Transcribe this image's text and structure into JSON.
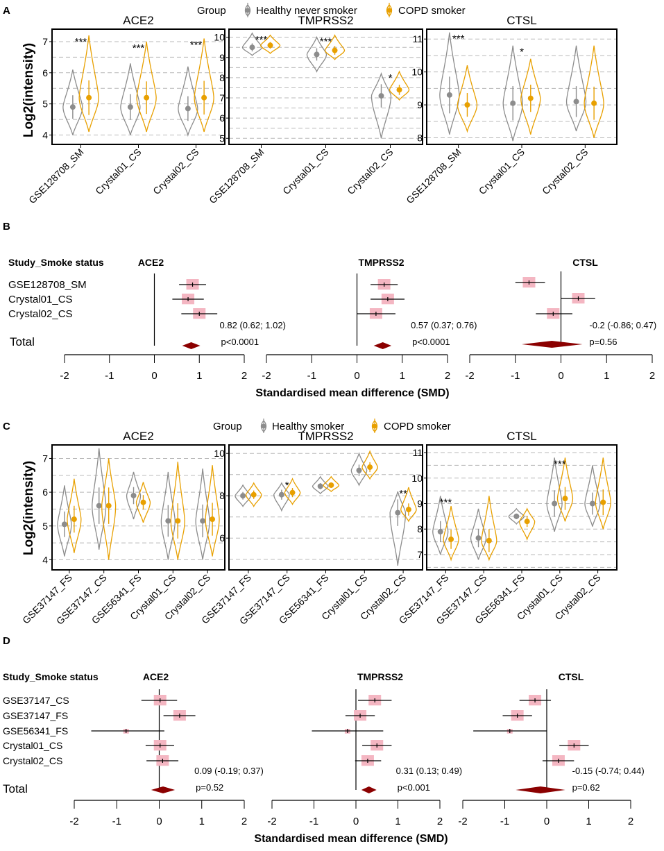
{
  "colors": {
    "healthy": "#8c8c8c",
    "copd": "#e8a000",
    "forest_box": "#f4b6c2",
    "diamond": "#8b0000"
  },
  "panel_labels": [
    "A",
    "B",
    "C",
    "D"
  ],
  "legends": {
    "A": {
      "title": "Group",
      "items": [
        "Healthy never smoker",
        "COPD smoker"
      ]
    },
    "C": {
      "title": "Group",
      "items": [
        "Healthy smoker",
        "COPD smoker"
      ]
    }
  },
  "ylabel": "Log2(intensity)",
  "forest_header": "Study_Smoke status",
  "forest_total_label": "Total",
  "forest_xlabel": "Standardised mean difference (SMD)",
  "chart_data": [
    {
      "type": "violin",
      "panel": "A",
      "title": "ACE2",
      "ylabel": "Log2(intensity)",
      "ylim": [
        3.7,
        7.4
      ],
      "yticks": [
        4,
        5,
        6,
        7
      ],
      "grid": [
        4,
        4.5,
        5,
        5.5,
        6,
        6.5,
        7
      ],
      "categories": [
        "GSE128708_SM",
        "Crystal01_CS",
        "Crystal02_CS"
      ],
      "series": [
        {
          "name": "Healthy never smoker",
          "values": [
            4.9,
            4.9,
            4.85
          ],
          "ranges": [
            [
              4.0,
              6.1
            ],
            [
              4.0,
              6.3
            ],
            [
              4.0,
              6.2
            ]
          ]
        },
        {
          "name": "COPD smoker",
          "values": [
            5.2,
            5.2,
            5.2
          ],
          "ranges": [
            [
              4.1,
              7.2
            ],
            [
              4.1,
              7.0
            ],
            [
              4.1,
              7.1
            ]
          ]
        }
      ],
      "significance": [
        "***",
        "***",
        "***"
      ]
    },
    {
      "type": "violin",
      "panel": "A",
      "title": "TMPRSS2",
      "ylim": [
        4.7,
        10.4
      ],
      "yticks": [
        5,
        6,
        7,
        8,
        9,
        10
      ],
      "grid": [
        5,
        5.5,
        6,
        6.5,
        7,
        7.5,
        8,
        8.5,
        9,
        9.5,
        10
      ],
      "categories": [
        "GSE128708_SM",
        "Crystal01_CS",
        "Crystal02_CS"
      ],
      "series": [
        {
          "name": "Healthy never smoker",
          "values": [
            9.5,
            9.15,
            7.1
          ],
          "ranges": [
            [
              9.1,
              10.2
            ],
            [
              8.3,
              10.0
            ],
            [
              5.0,
              8.2
            ]
          ]
        },
        {
          "name": "COPD smoker",
          "values": [
            9.6,
            9.35,
            7.4
          ],
          "ranges": [
            [
              9.2,
              10.1
            ],
            [
              8.9,
              10.1
            ],
            [
              6.9,
              8.3
            ]
          ]
        }
      ],
      "significance": [
        "***",
        "***",
        "*"
      ]
    },
    {
      "type": "violin",
      "panel": "A",
      "title": "CTSL",
      "ylim": [
        7.8,
        11.3
      ],
      "yticks": [
        8,
        9,
        10,
        11
      ],
      "grid": [
        8,
        8.5,
        9,
        9.5,
        10,
        10.5,
        11
      ],
      "categories": [
        "GSE128708_SM",
        "Crystal01_CS",
        "Crystal02_CS"
      ],
      "series": [
        {
          "name": "Healthy never smoker",
          "values": [
            9.3,
            9.05,
            9.1
          ],
          "ranges": [
            [
              8.1,
              11.2
            ],
            [
              7.9,
              10.8
            ],
            [
              8.2,
              10.8
            ]
          ]
        },
        {
          "name": "COPD smoker",
          "values": [
            9.0,
            9.2,
            9.05
          ],
          "ranges": [
            [
              8.2,
              10.2
            ],
            [
              8.1,
              10.4
            ],
            [
              8.0,
              10.8
            ]
          ]
        }
      ],
      "significance": [
        "***",
        "*",
        ""
      ]
    },
    {
      "type": "forest",
      "panel": "B",
      "title": "ACE2",
      "xlim": [
        -2,
        2
      ],
      "xticks": [
        -2,
        -1,
        0,
        1,
        2
      ],
      "studies": [
        "GSE128708_SM",
        "Crystal01_CS",
        "Crystal02_CS"
      ],
      "estimates": [
        0.85,
        0.75,
        1.0
      ],
      "ci": [
        [
          0.55,
          1.15
        ],
        [
          0.4,
          1.1
        ],
        [
          0.6,
          1.4
        ]
      ],
      "total": {
        "estimate": 0.82,
        "ci": [
          0.62,
          1.02
        ]
      },
      "summary_text": "0.82 (0.62; 1.02)",
      "p_text": "p<0.0001"
    },
    {
      "type": "forest",
      "panel": "B",
      "title": "TMPRSS2",
      "xlim": [
        -2,
        2
      ],
      "xticks": [
        -2,
        -1,
        0,
        1,
        2
      ],
      "studies": [
        "GSE128708_SM",
        "Crystal01_CS",
        "Crystal02_CS"
      ],
      "estimates": [
        0.6,
        0.68,
        0.42
      ],
      "ci": [
        [
          0.3,
          0.9
        ],
        [
          0.3,
          1.05
        ],
        [
          0.0,
          0.85
        ]
      ],
      "total": {
        "estimate": 0.57,
        "ci": [
          0.37,
          0.76
        ]
      },
      "summary_text": "0.57 (0.37; 0.76)",
      "p_text": "p<0.0001"
    },
    {
      "type": "forest",
      "panel": "B",
      "title": "CTSL",
      "xlim": [
        -2,
        2
      ],
      "xticks": [
        -2,
        -1,
        0,
        1,
        2
      ],
      "studies": [
        "GSE128708_SM",
        "Crystal01_CS",
        "Crystal02_CS"
      ],
      "estimates": [
        -0.7,
        0.38,
        -0.17
      ],
      "ci": [
        [
          -1.0,
          -0.35
        ],
        [
          0.0,
          0.75
        ],
        [
          -0.55,
          0.25
        ]
      ],
      "total": {
        "estimate": -0.2,
        "ci": [
          -0.86,
          0.47
        ]
      },
      "summary_text": "-0.2 (-0.86; 0.47)",
      "p_text": "p=0.56"
    },
    {
      "type": "violin",
      "panel": "C",
      "title": "ACE2",
      "ylabel": "Log2(intensity)",
      "ylim": [
        3.7,
        7.4
      ],
      "yticks": [
        4,
        5,
        6,
        7
      ],
      "grid": [
        4,
        4.5,
        5,
        5.5,
        6,
        6.5,
        7
      ],
      "categories": [
        "GSE37147_FS",
        "GSE37147_CS",
        "GSE56341_FS",
        "Crystal01_CS",
        "Crystal02_CS"
      ],
      "series": [
        {
          "name": "Healthy smoker",
          "values": [
            5.05,
            5.6,
            5.9,
            5.15,
            5.15
          ],
          "ranges": [
            [
              4.1,
              6.2
            ],
            [
              4.3,
              7.3
            ],
            [
              5.2,
              6.6
            ],
            [
              4.0,
              6.6
            ],
            [
              4.0,
              6.7
            ]
          ]
        },
        {
          "name": "COPD smoker",
          "values": [
            5.2,
            5.6,
            5.7,
            5.15,
            5.2
          ],
          "ranges": [
            [
              4.2,
              6.4
            ],
            [
              4.0,
              7.0
            ],
            [
              5.1,
              6.3
            ],
            [
              4.0,
              6.9
            ],
            [
              4.1,
              6.8
            ]
          ]
        }
      ],
      "significance": [
        "",
        "",
        "",
        "",
        ""
      ]
    },
    {
      "type": "violin",
      "panel": "C",
      "title": "TMPRSS2",
      "ylim": [
        4.5,
        10.4
      ],
      "yticks": [
        6,
        8,
        10
      ],
      "grid": [
        5,
        6,
        7,
        8,
        9,
        10
      ],
      "categories": [
        "GSE37147_FS",
        "GSE37147_CS",
        "GSE56341_FS",
        "Crystal01_CS",
        "Crystal02_CS"
      ],
      "series": [
        {
          "name": "Healthy smoker",
          "values": [
            8.0,
            8.05,
            8.45,
            9.2,
            7.2
          ],
          "ranges": [
            [
              7.5,
              8.5
            ],
            [
              7.3,
              8.6
            ],
            [
              8.1,
              8.9
            ],
            [
              8.5,
              10.0
            ],
            [
              4.7,
              8.2
            ]
          ]
        },
        {
          "name": "COPD smoker",
          "values": [
            8.05,
            8.15,
            8.5,
            9.35,
            7.35
          ],
          "ranges": [
            [
              7.5,
              8.6
            ],
            [
              7.6,
              8.8
            ],
            [
              8.2,
              8.9
            ],
            [
              8.8,
              10.1
            ],
            [
              6.8,
              8.4
            ]
          ]
        }
      ],
      "significance": [
        "",
        "*",
        "",
        "",
        "**"
      ]
    },
    {
      "type": "violin",
      "panel": "C",
      "title": "CTSL",
      "ylim": [
        6.4,
        11.3
      ],
      "yticks": [
        7,
        8,
        9,
        10,
        11
      ],
      "grid": [
        6.5,
        7,
        7.5,
        8,
        8.5,
        9,
        9.5,
        10,
        10.5,
        11
      ],
      "categories": [
        "GSE37147_FS",
        "GSE37147_CS",
        "GSE56341_FS",
        "Crystal01_CS",
        "Crystal02_CS"
      ],
      "series": [
        {
          "name": "Healthy smoker",
          "values": [
            7.9,
            7.65,
            8.5,
            9.0,
            9.0
          ],
          "ranges": [
            [
              7.0,
              9.3
            ],
            [
              6.8,
              8.8
            ],
            [
              8.2,
              8.8
            ],
            [
              7.9,
              10.8
            ],
            [
              8.1,
              10.5
            ]
          ]
        },
        {
          "name": "COPD smoker",
          "values": [
            7.6,
            7.55,
            8.3,
            9.2,
            9.05
          ],
          "ranges": [
            [
              6.8,
              8.9
            ],
            [
              6.8,
              9.3
            ],
            [
              7.6,
              8.8
            ],
            [
              8.3,
              10.8
            ],
            [
              8.0,
              10.8
            ]
          ]
        }
      ],
      "significance": [
        "***",
        "",
        "",
        "***",
        ""
      ]
    },
    {
      "type": "forest",
      "panel": "D",
      "title": "ACE2",
      "xlim": [
        -2,
        2
      ],
      "xticks": [
        -2,
        -1,
        0,
        1,
        2
      ],
      "studies": [
        "GSE37147_CS",
        "GSE37147_FS",
        "GSE56341_FS",
        "Crystal01_CS",
        "Crystal02_CS"
      ],
      "estimates": [
        0.02,
        0.48,
        -0.78,
        0.02,
        0.08
      ],
      "ci": [
        [
          -0.42,
          0.42
        ],
        [
          0.1,
          0.85
        ],
        [
          -1.6,
          0.12
        ],
        [
          -0.32,
          0.35
        ],
        [
          -0.3,
          0.45
        ]
      ],
      "total": {
        "estimate": 0.09,
        "ci": [
          -0.19,
          0.37
        ]
      },
      "summary_text": "0.09 (-0.19; 0.37)",
      "p_text": "p=0.52"
    },
    {
      "type": "forest",
      "panel": "D",
      "title": "TMPRSS2",
      "xlim": [
        -2,
        2
      ],
      "xticks": [
        -2,
        -1,
        0,
        1,
        2
      ],
      "studies": [
        "GSE37147_CS",
        "GSE37147_FS",
        "GSE56341_FS",
        "Crystal01_CS",
        "Crystal02_CS"
      ],
      "estimates": [
        0.45,
        0.1,
        -0.2,
        0.5,
        0.28
      ],
      "ci": [
        [
          0.05,
          0.85
        ],
        [
          -0.25,
          0.45
        ],
        [
          -1.05,
          0.65
        ],
        [
          0.15,
          0.85
        ],
        [
          -0.02,
          0.6
        ]
      ],
      "total": {
        "estimate": 0.31,
        "ci": [
          0.13,
          0.49
        ]
      },
      "summary_text": "0.31 (0.13; 0.49)",
      "p_text": "p<0.001"
    },
    {
      "type": "forest",
      "panel": "D",
      "title": "CTSL",
      "xlim": [
        -2,
        2
      ],
      "xticks": [
        -2,
        -1,
        0,
        1,
        2
      ],
      "studies": [
        "GSE37147_CS",
        "GSE37147_FS",
        "GSE56341_FS",
        "Crystal01_CS",
        "Crystal02_CS"
      ],
      "estimates": [
        -0.28,
        -0.7,
        -0.88,
        0.65,
        0.28
      ],
      "ci": [
        [
          -0.65,
          0.1
        ],
        [
          -1.05,
          -0.35
        ],
        [
          -1.75,
          0.0
        ],
        [
          0.3,
          1.0
        ],
        [
          -0.1,
          0.65
        ]
      ],
      "total": {
        "estimate": -0.15,
        "ci": [
          -0.74,
          0.44
        ]
      },
      "summary_text": "-0.15 (-0.74; 0.44)",
      "p_text": "p=0.62"
    }
  ]
}
